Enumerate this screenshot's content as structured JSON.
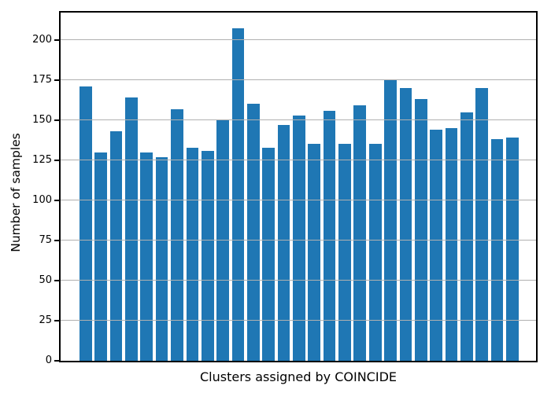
{
  "chart_data": {
    "type": "bar",
    "title": "",
    "xlabel": "Clusters assigned by COINCIDE",
    "ylabel": "Number of samples",
    "n_bars": 29,
    "values": [
      171,
      130,
      143,
      164,
      130,
      127,
      157,
      133,
      131,
      150,
      207,
      160,
      133,
      147,
      153,
      135,
      156,
      135,
      159,
      135,
      175,
      170,
      163,
      144,
      145,
      155,
      170,
      138,
      139
    ],
    "yticks": [
      0,
      25,
      50,
      75,
      100,
      125,
      150,
      175,
      200
    ],
    "ylim": [
      0,
      217
    ],
    "x_tick_labels": "none",
    "legend": "none",
    "grid": "horizontal gridlines drawn over bars",
    "colors": {
      "bar": "#1f77b4",
      "gridline": "#b0b0b0",
      "spine": "#000000",
      "text": "#000000",
      "background": "#ffffff"
    }
  }
}
